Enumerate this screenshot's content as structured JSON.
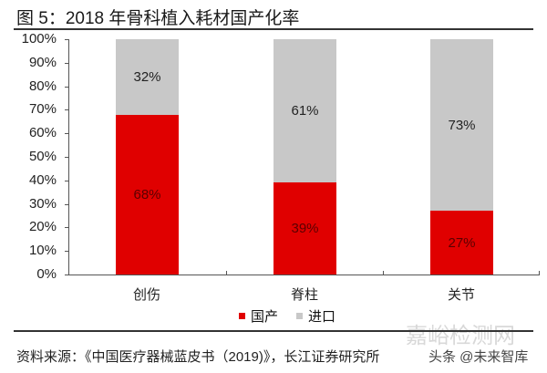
{
  "title": "图 5：2018 年骨科植入耗材国产化率",
  "source": "资料来源：《中国医疗器械蓝皮书（2019)》，长江证券研究所",
  "watermarks": [
    "嘉峪检测网",
    "头条 @未来智库"
  ],
  "colors": {
    "domestic": "#e00000",
    "import": "#c8c8c8"
  },
  "chart_data": {
    "type": "bar",
    "stacked": true,
    "title": "图 5：2018 年骨科植入耗材国产化率",
    "categories": [
      "创伤",
      "脊柱",
      "关节"
    ],
    "series": [
      {
        "name": "国产",
        "values": [
          68,
          39,
          27
        ],
        "labels": [
          "68%",
          "39%",
          "27%"
        ]
      },
      {
        "name": "进口",
        "values": [
          32,
          61,
          73
        ],
        "labels": [
          "32%",
          "61%",
          "73%"
        ]
      }
    ],
    "xlabel": "",
    "ylabel": "",
    "ylim": [
      0,
      100
    ],
    "yticks": [
      "0%",
      "10%",
      "20%",
      "30%",
      "40%",
      "50%",
      "60%",
      "70%",
      "80%",
      "90%",
      "100%"
    ],
    "legend_position": "bottom",
    "grid": false
  }
}
